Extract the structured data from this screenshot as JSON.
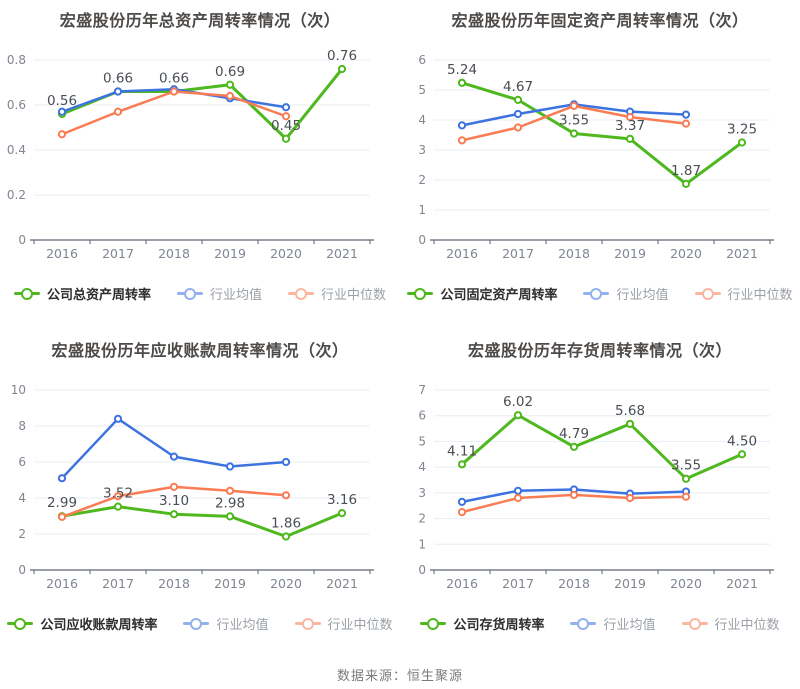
{
  "footer": {
    "source_text": "数据来源：恒生聚源"
  },
  "colors": {
    "company": "#4fb81e",
    "industry_mean": "#3c73e1",
    "industry_median": "#f97c54",
    "grid": "#e9edf4",
    "axis": "#5e6470",
    "tick_label": "#7f8691",
    "data_label": "#4a4f55",
    "title": "#4d4a48"
  },
  "chart_data": [
    {
      "type": "line",
      "title": "宏盛股份历年总资产周转率情况（次）",
      "x": [
        "2016",
        "2017",
        "2018",
        "2019",
        "2020",
        "2021"
      ],
      "ylim": [
        0,
        0.8
      ],
      "yticks": [
        0,
        0.2,
        0.4,
        0.6,
        0.8
      ],
      "ytick_labels": [
        "0",
        "0.2",
        "0.4",
        "0.6",
        "0.8"
      ],
      "grid": true,
      "legend_position": "bottom",
      "series": [
        {
          "name": "公司总资产周转率",
          "role": "company",
          "values": [
            0.56,
            0.66,
            0.66,
            0.69,
            0.45,
            0.76
          ],
          "point_labels": [
            "0.56",
            "0.66",
            "0.66",
            "0.69",
            "0.45",
            "0.76"
          ]
        },
        {
          "name": "行业均值",
          "role": "industry_mean",
          "values": [
            0.57,
            0.66,
            0.67,
            0.63,
            0.59,
            null
          ]
        },
        {
          "name": "行业中位数",
          "role": "industry_median",
          "values": [
            0.47,
            0.57,
            0.66,
            0.64,
            0.55,
            null
          ]
        }
      ]
    },
    {
      "type": "line",
      "title": "宏盛股份历年固定资产周转率情况（次）",
      "x": [
        "2016",
        "2017",
        "2018",
        "2019",
        "2020",
        "2021"
      ],
      "ylim": [
        0,
        6
      ],
      "yticks": [
        0,
        1,
        2,
        3,
        4,
        5,
        6
      ],
      "ytick_labels": [
        "0",
        "1",
        "2",
        "3",
        "4",
        "5",
        "6"
      ],
      "grid": true,
      "legend_position": "bottom",
      "series": [
        {
          "name": "公司固定资产周转率",
          "role": "company",
          "values": [
            5.24,
            4.67,
            3.55,
            3.37,
            1.87,
            3.25
          ],
          "point_labels": [
            "5.24",
            "4.67",
            "3.55",
            "3.37",
            "1.87",
            "3.25"
          ]
        },
        {
          "name": "行业均值",
          "role": "industry_mean",
          "values": [
            3.82,
            4.2,
            4.52,
            4.28,
            4.18,
            null
          ]
        },
        {
          "name": "行业中位数",
          "role": "industry_median",
          "values": [
            3.32,
            3.75,
            4.47,
            4.1,
            3.88,
            null
          ]
        }
      ]
    },
    {
      "type": "line",
      "title": "宏盛股份历年应收账款周转率情况（次）",
      "x": [
        "2016",
        "2017",
        "2018",
        "2019",
        "2020",
        "2021"
      ],
      "ylim": [
        0,
        10
      ],
      "yticks": [
        0,
        2,
        4,
        6,
        8,
        10
      ],
      "ytick_labels": [
        "0",
        "2",
        "4",
        "6",
        "8",
        "10"
      ],
      "grid": true,
      "legend_position": "bottom",
      "series": [
        {
          "name": "公司应收账款周转率",
          "role": "company",
          "values": [
            2.99,
            3.52,
            3.1,
            2.98,
            1.86,
            3.16
          ],
          "point_labels": [
            "2.99",
            "3.52",
            "3.10",
            "2.98",
            "1.86",
            "3.16"
          ]
        },
        {
          "name": "行业均值",
          "role": "industry_mean",
          "values": [
            5.1,
            8.4,
            6.3,
            5.75,
            6.0,
            null
          ]
        },
        {
          "name": "行业中位数",
          "role": "industry_median",
          "values": [
            2.95,
            4.1,
            4.62,
            4.4,
            4.15,
            null
          ]
        }
      ]
    },
    {
      "type": "line",
      "title": "宏盛股份历年存货周转率情况（次）",
      "x": [
        "2016",
        "2017",
        "2018",
        "2019",
        "2020",
        "2021"
      ],
      "ylim": [
        0,
        7
      ],
      "yticks": [
        0,
        1,
        2,
        3,
        4,
        5,
        6,
        7
      ],
      "ytick_labels": [
        "0",
        "1",
        "2",
        "3",
        "4",
        "5",
        "6",
        "7"
      ],
      "grid": true,
      "legend_position": "bottom",
      "series": [
        {
          "name": "公司存货周转率",
          "role": "company",
          "values": [
            4.11,
            6.02,
            4.79,
            5.68,
            3.55,
            4.5
          ],
          "point_labels": [
            "4.11",
            "6.02",
            "4.79",
            "5.68",
            "3.55",
            "4.50"
          ]
        },
        {
          "name": "行业均值",
          "role": "industry_mean",
          "values": [
            2.65,
            3.08,
            3.13,
            2.97,
            3.05,
            null
          ]
        },
        {
          "name": "行业中位数",
          "role": "industry_median",
          "values": [
            2.25,
            2.8,
            2.92,
            2.8,
            2.85,
            null
          ]
        }
      ]
    }
  ]
}
